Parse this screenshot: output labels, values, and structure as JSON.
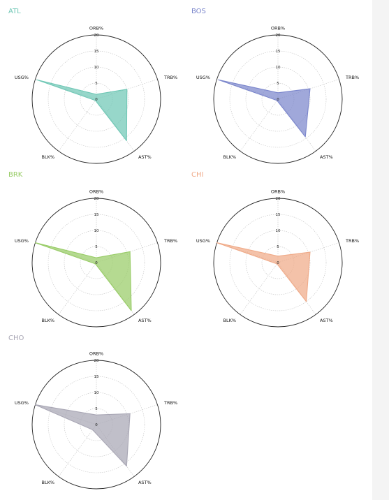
{
  "chart_data": [
    {
      "type": "radar",
      "title": "ATL",
      "color": "#6fc7b5",
      "axes": [
        "ORB%",
        "TRB%",
        "AST%",
        "BLK%",
        "USG%"
      ],
      "rticks": [
        "0",
        "5",
        "10",
        "15",
        "20"
      ],
      "rlim": [
        0,
        20
      ],
      "values": [
        1.5,
        10.0,
        16.0,
        0.5,
        19.5
      ]
    },
    {
      "type": "radar",
      "title": "BOS",
      "color": "#7b86cc",
      "axes": [
        "ORB%",
        "TRB%",
        "AST%",
        "BLK%",
        "USG%"
      ],
      "rticks": [
        "0",
        "5",
        "10",
        "15",
        "20"
      ],
      "rlim": [
        0,
        20
      ],
      "values": [
        2.0,
        10.5,
        14.5,
        0.5,
        19.5
      ]
    },
    {
      "type": "radar",
      "title": "BRK",
      "color": "#98cc66",
      "axes": [
        "ORB%",
        "TRB%",
        "AST%",
        "BLK%",
        "USG%"
      ],
      "rticks": [
        "0",
        "5",
        "10",
        "15",
        "20"
      ],
      "rlim": [
        0,
        20
      ],
      "values": [
        1.5,
        11.0,
        18.5,
        0.5,
        20.0
      ]
    },
    {
      "type": "radar",
      "title": "CHI",
      "color": "#f0aa88",
      "axes": [
        "ORB%",
        "TRB%",
        "AST%",
        "BLK%",
        "USG%"
      ],
      "rticks": [
        "0",
        "5",
        "10",
        "15",
        "20"
      ],
      "rlim": [
        0,
        20
      ],
      "values": [
        2.0,
        10.5,
        15.0,
        0.5,
        20.0
      ]
    },
    {
      "type": "radar",
      "title": "CHO",
      "color": "#a8a6b4",
      "axes": [
        "ORB%",
        "TRB%",
        "AST%",
        "BLK%",
        "USG%"
      ],
      "rticks": [
        "0",
        "5",
        "10",
        "15",
        "20"
      ],
      "rlim": [
        0,
        20
      ],
      "values": [
        3.0,
        11.0,
        16.0,
        2.0,
        20.0
      ]
    }
  ]
}
